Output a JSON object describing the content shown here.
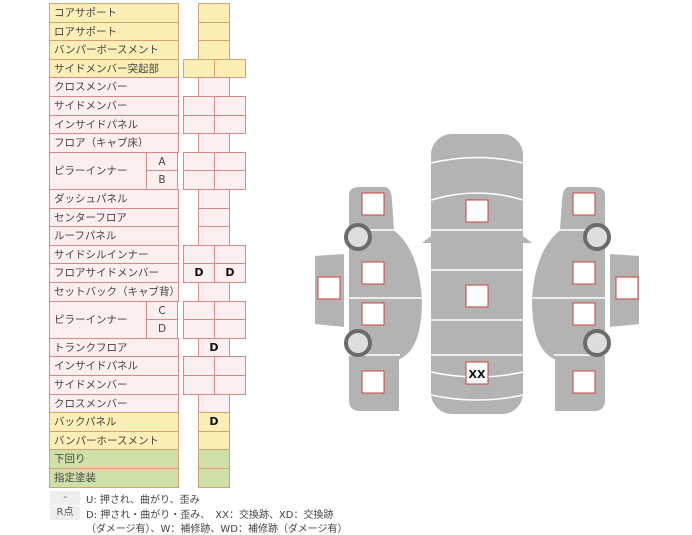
{
  "colors": {
    "front": "#fbefb5",
    "body": "#fdeef0",
    "under": "#cfe0a8",
    "border": "#d88a8a",
    "car": "#b3b3b3",
    "marker": "#d0413a"
  },
  "rows": [
    {
      "label": "コアサポート",
      "type": "front",
      "cells": [
        ""
      ]
    },
    {
      "label": "ロアサポート",
      "type": "front",
      "cells": [
        ""
      ]
    },
    {
      "label": "バンパーボースメント",
      "type": "front",
      "cells": [
        ""
      ]
    },
    {
      "label": "サイドメンバー突起部",
      "type": "front",
      "cells": [
        "",
        ""
      ]
    },
    {
      "label": "クロスメンバー",
      "type": "body",
      "cells": [
        ""
      ]
    },
    {
      "label": "サイドメンバー",
      "type": "body",
      "cells": [
        "",
        ""
      ]
    },
    {
      "label": "インサイドパネル",
      "type": "body",
      "cells": [
        "",
        ""
      ]
    },
    {
      "label": "フロア（キャブ床）",
      "type": "body",
      "cells": [
        ""
      ]
    },
    {
      "label": "ピラーインナー",
      "sub": "A",
      "type": "body",
      "cells": [
        "",
        ""
      ]
    },
    {
      "label": "",
      "sub": "B",
      "type": "body",
      "cells": [
        "",
        ""
      ]
    },
    {
      "label": "ダッシュパネル",
      "type": "body",
      "cells": [
        ""
      ]
    },
    {
      "label": "センターフロア",
      "type": "body",
      "cells": [
        ""
      ]
    },
    {
      "label": "ルーフパネル",
      "type": "body",
      "cells": [
        ""
      ]
    },
    {
      "label": "サイドシルインナー",
      "type": "body",
      "cells": [
        "",
        ""
      ]
    },
    {
      "label": "フロアサイドメンバー",
      "type": "body",
      "cells": [
        "D",
        "D"
      ]
    },
    {
      "label": "セットバック（キャブ背）",
      "type": "body",
      "cells": [
        ""
      ]
    },
    {
      "label": "ピラーインナー",
      "sub": "C",
      "type": "body",
      "cells": [
        "",
        ""
      ]
    },
    {
      "label": "",
      "sub": "D",
      "type": "body",
      "cells": [
        "",
        ""
      ]
    },
    {
      "label": "トランクフロア",
      "type": "body",
      "cells": [
        "D"
      ]
    },
    {
      "label": "インサイドパネル",
      "type": "body",
      "cells": [
        "",
        ""
      ]
    },
    {
      "label": "サイドメンバー",
      "type": "body",
      "cells": [
        "",
        ""
      ]
    },
    {
      "label": "クロスメンバー",
      "type": "body",
      "cells": [
        ""
      ]
    },
    {
      "label": "バックパネル",
      "type": "front",
      "cells": [
        "D"
      ]
    },
    {
      "label": "バンパーホースメント",
      "type": "front",
      "cells": [
        ""
      ]
    },
    {
      "label": "下回り",
      "type": "under",
      "cells": [
        ""
      ]
    },
    {
      "label": "指定塗装",
      "type": "under",
      "cells": [
        ""
      ]
    }
  ],
  "legend": {
    "key1": "-",
    "text1": "U: 押され、曲がり、歪み",
    "key2": "R点",
    "text2": "D: 押され・曲がり・歪み、　XX：交換跡、XD：交換跡",
    "text3": "（ダメージ有）、W：補修跡、WD：補修跡（ダメージ有）"
  },
  "car": {
    "center_marks": [
      "",
      "",
      "XX"
    ]
  }
}
